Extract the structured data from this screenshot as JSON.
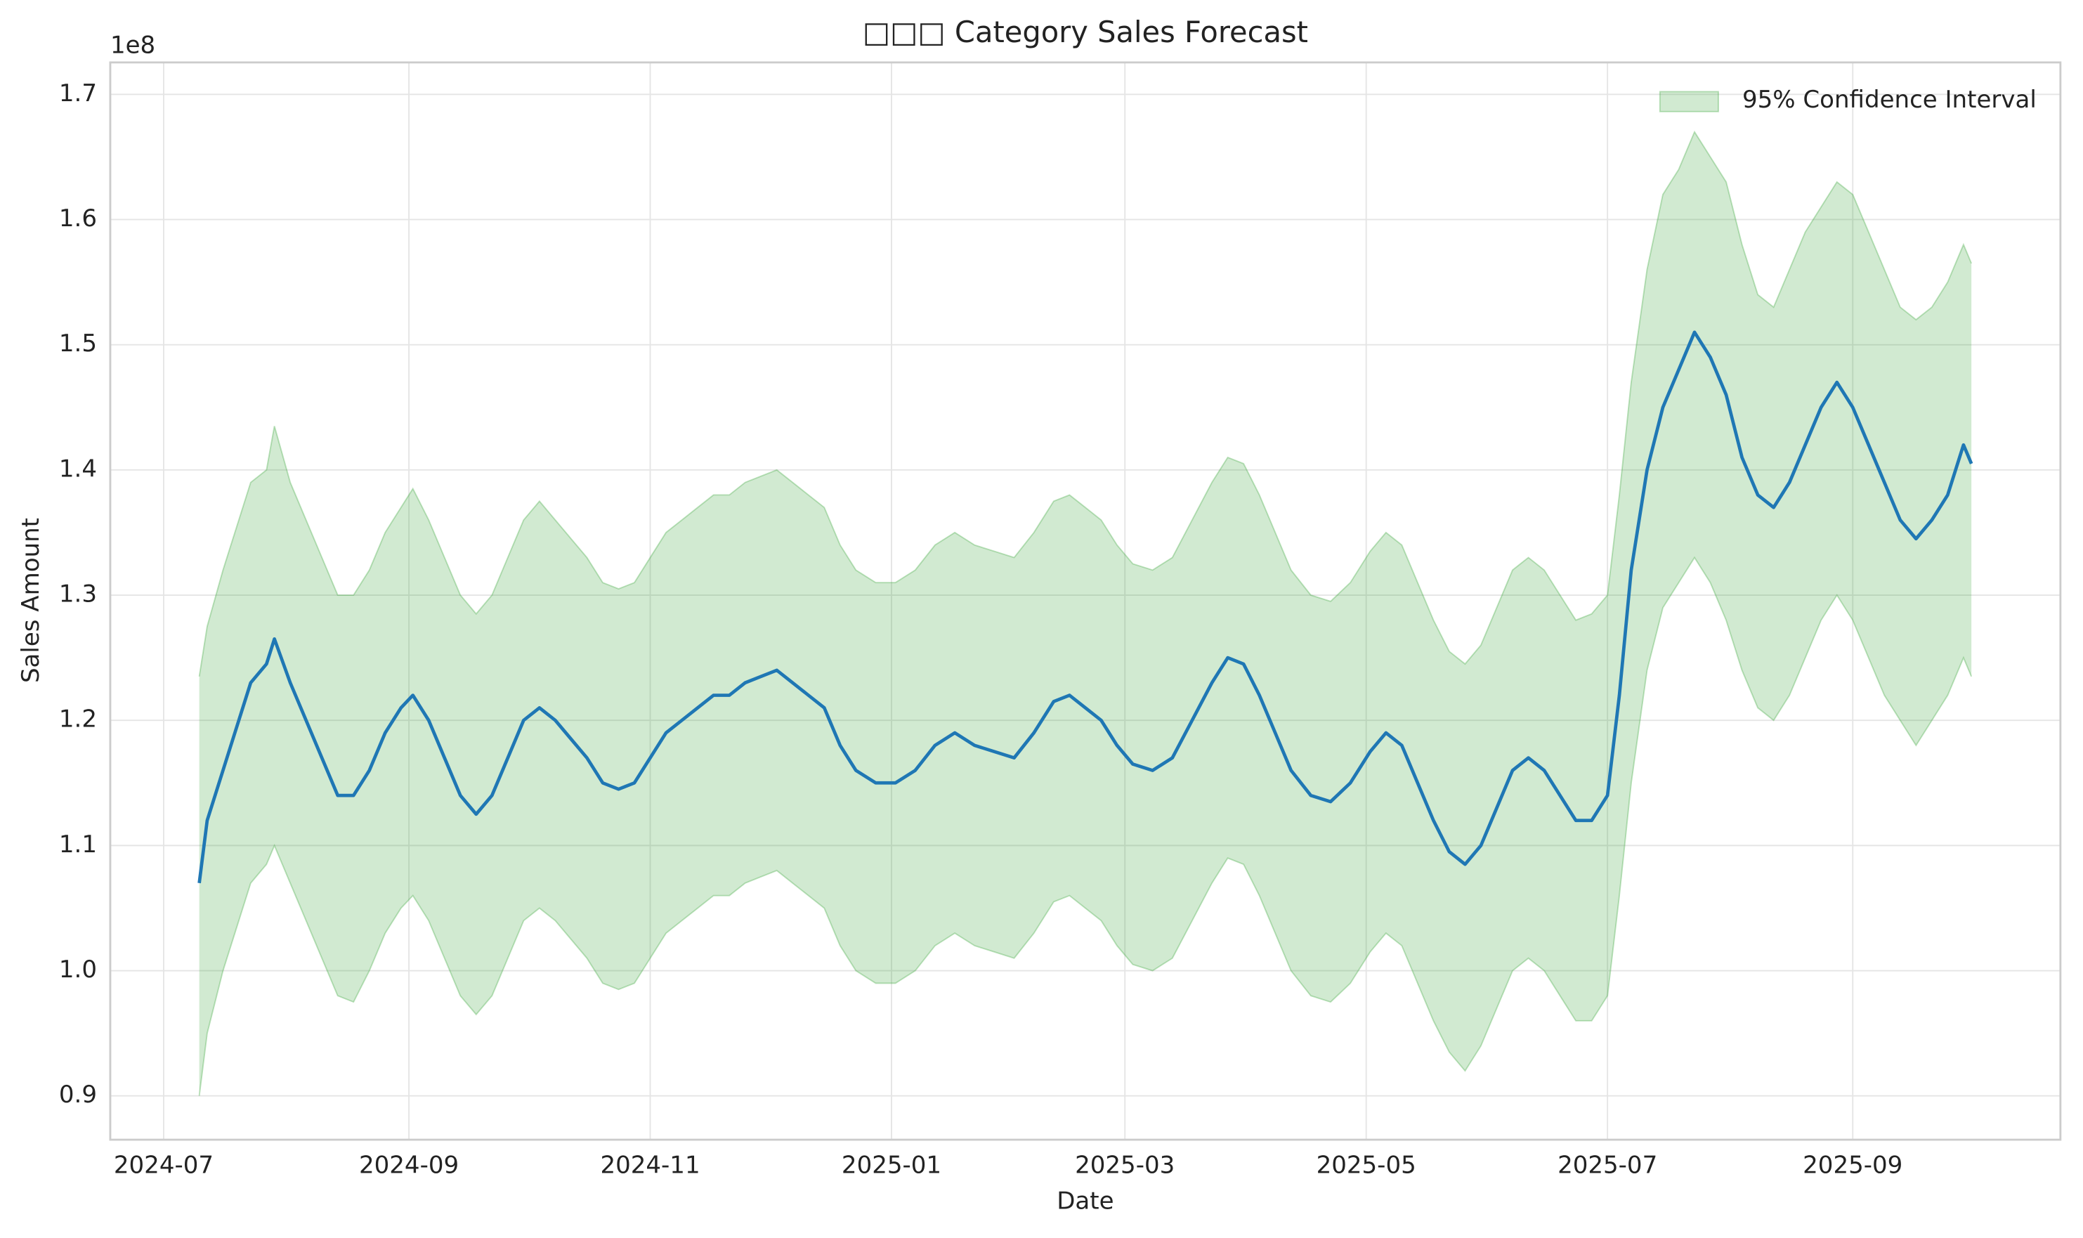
{
  "chart_data": {
    "type": "line",
    "title": "□□□ Category Sales Forecast",
    "x_label": "Date",
    "y_label": "Sales Amount",
    "y_offset_label": "1e8",
    "x": [
      9,
      11,
      15,
      19,
      22,
      26,
      28,
      32,
      36,
      40,
      44,
      48,
      52,
      56,
      60,
      63,
      67,
      71,
      75,
      79,
      83,
      87,
      91,
      95,
      99,
      103,
      107,
      111,
      115,
      119,
      123,
      127,
      131,
      135,
      139,
      143,
      147,
      151,
      155,
      159,
      163,
      167,
      171,
      175,
      180,
      185,
      190,
      195,
      200,
      205,
      210,
      215,
      220,
      225,
      229,
      233,
      237,
      241,
      245,
      250,
      255,
      260,
      265,
      269,
      273,
      277,
      281,
      285,
      290,
      295,
      300,
      305,
      309,
      313,
      317,
      321,
      325,
      329,
      333,
      337,
      341,
      345,
      349,
      353,
      357,
      361,
      365,
      368,
      371,
      375,
      379,
      383,
      387,
      391,
      395,
      399,
      403,
      407,
      411,
      415,
      419,
      423,
      427,
      431,
      435,
      439,
      443,
      447,
      451,
      455,
      457
    ],
    "series": [
      {
        "color": "#1f77b4",
        "values": [
          1.07,
          1.12,
          1.16,
          1.2,
          1.23,
          1.245,
          1.265,
          1.23,
          1.2,
          1.17,
          1.14,
          1.14,
          1.16,
          1.19,
          1.21,
          1.22,
          1.2,
          1.17,
          1.14,
          1.125,
          1.14,
          1.17,
          1.2,
          1.21,
          1.2,
          1.185,
          1.17,
          1.15,
          1.145,
          1.15,
          1.17,
          1.19,
          1.2,
          1.21,
          1.22,
          1.22,
          1.23,
          1.235,
          1.24,
          1.23,
          1.22,
          1.21,
          1.18,
          1.16,
          1.15,
          1.15,
          1.16,
          1.18,
          1.19,
          1.18,
          1.175,
          1.17,
          1.19,
          1.215,
          1.22,
          1.21,
          1.2,
          1.18,
          1.165,
          1.16,
          1.17,
          1.2,
          1.23,
          1.25,
          1.245,
          1.22,
          1.19,
          1.16,
          1.14,
          1.135,
          1.15,
          1.175,
          1.19,
          1.18,
          1.15,
          1.12,
          1.095,
          1.085,
          1.1,
          1.13,
          1.16,
          1.17,
          1.16,
          1.14,
          1.12,
          1.12,
          1.14,
          1.22,
          1.32,
          1.4,
          1.45,
          1.48,
          1.51,
          1.49,
          1.46,
          1.41,
          1.38,
          1.37,
          1.39,
          1.42,
          1.45,
          1.47,
          1.45,
          1.42,
          1.39,
          1.36,
          1.345,
          1.36,
          1.38,
          1.42,
          1.405
        ]
      }
    ],
    "band": {
      "name": "95% Confidence Interval",
      "color": "#2ca02c",
      "lower": [
        0.9,
        0.95,
        1.0,
        1.04,
        1.07,
        1.085,
        1.1,
        1.07,
        1.04,
        1.01,
        0.98,
        0.975,
        1.0,
        1.03,
        1.05,
        1.06,
        1.04,
        1.01,
        0.98,
        0.965,
        0.98,
        1.01,
        1.04,
        1.05,
        1.04,
        1.025,
        1.01,
        0.99,
        0.985,
        0.99,
        1.01,
        1.03,
        1.04,
        1.05,
        1.06,
        1.06,
        1.07,
        1.075,
        1.08,
        1.07,
        1.06,
        1.05,
        1.02,
        1.0,
        0.99,
        0.99,
        1.0,
        1.02,
        1.03,
        1.02,
        1.015,
        1.01,
        1.03,
        1.055,
        1.06,
        1.05,
        1.04,
        1.02,
        1.005,
        1.0,
        1.01,
        1.04,
        1.07,
        1.09,
        1.085,
        1.06,
        1.03,
        1.0,
        0.98,
        0.975,
        0.99,
        1.015,
        1.03,
        1.02,
        0.99,
        0.96,
        0.935,
        0.92,
        0.94,
        0.97,
        1.0,
        1.01,
        1.0,
        0.98,
        0.96,
        0.96,
        0.98,
        1.06,
        1.15,
        1.24,
        1.29,
        1.31,
        1.33,
        1.31,
        1.28,
        1.24,
        1.21,
        1.2,
        1.22,
        1.25,
        1.28,
        1.3,
        1.28,
        1.25,
        1.22,
        1.2,
        1.18,
        1.2,
        1.22,
        1.25,
        1.235
      ],
      "upper": [
        1.235,
        1.275,
        1.32,
        1.36,
        1.39,
        1.4,
        1.435,
        1.39,
        1.36,
        1.33,
        1.3,
        1.3,
        1.32,
        1.35,
        1.37,
        1.385,
        1.36,
        1.33,
        1.3,
        1.285,
        1.3,
        1.33,
        1.36,
        1.375,
        1.36,
        1.345,
        1.33,
        1.31,
        1.305,
        1.31,
        1.33,
        1.35,
        1.36,
        1.37,
        1.38,
        1.38,
        1.39,
        1.395,
        1.4,
        1.39,
        1.38,
        1.37,
        1.34,
        1.32,
        1.31,
        1.31,
        1.32,
        1.34,
        1.35,
        1.34,
        1.335,
        1.33,
        1.35,
        1.375,
        1.38,
        1.37,
        1.36,
        1.34,
        1.325,
        1.32,
        1.33,
        1.36,
        1.39,
        1.41,
        1.405,
        1.38,
        1.35,
        1.32,
        1.3,
        1.295,
        1.31,
        1.335,
        1.35,
        1.34,
        1.31,
        1.28,
        1.255,
        1.245,
        1.26,
        1.29,
        1.32,
        1.33,
        1.32,
        1.3,
        1.28,
        1.285,
        1.3,
        1.38,
        1.47,
        1.56,
        1.62,
        1.64,
        1.67,
        1.65,
        1.63,
        1.58,
        1.54,
        1.53,
        1.56,
        1.59,
        1.61,
        1.63,
        1.62,
        1.59,
        1.56,
        1.53,
        1.52,
        1.53,
        1.55,
        1.58,
        1.565
      ]
    },
    "xlim": [
      -13.5,
      479.5
    ],
    "xticks": [
      {
        "value": 0,
        "label": "2024-07"
      },
      {
        "value": 62,
        "label": "2024-09"
      },
      {
        "value": 123,
        "label": "2024-11"
      },
      {
        "value": 184,
        "label": "2025-01"
      },
      {
        "value": 243,
        "label": "2025-03"
      },
      {
        "value": 304,
        "label": "2025-05"
      },
      {
        "value": 365,
        "label": "2025-07"
      },
      {
        "value": 427,
        "label": "2025-09"
      }
    ],
    "ylim": [
      0.865,
      1.7255
    ],
    "yticks": [
      0.9,
      {
        "value": 1,
        "label": "1.0"
      },
      1.1,
      1.2,
      1.3,
      1.4,
      1.5,
      1.6,
      1.7
    ],
    "grid": true,
    "legend": "upper right"
  }
}
